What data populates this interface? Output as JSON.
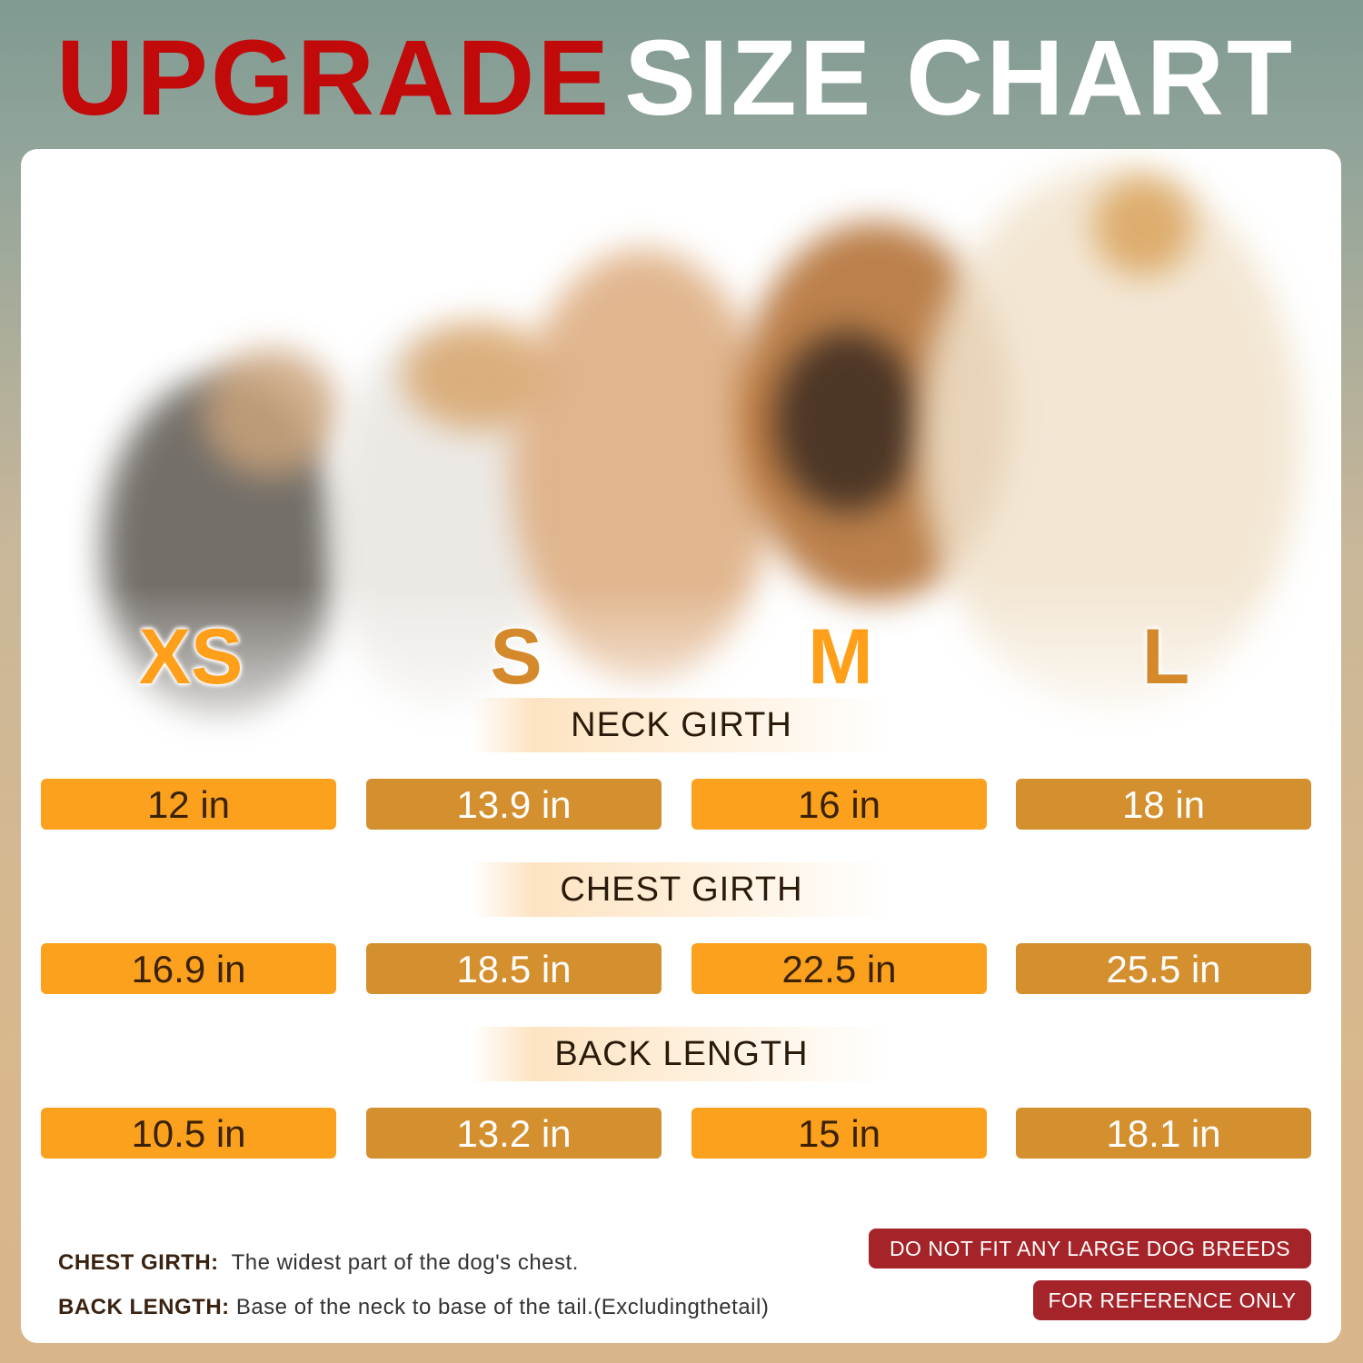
{
  "title": {
    "highlight": "UPGRADE",
    "rest": "SIZE CHART"
  },
  "colors": {
    "title_red": "#c20a0a",
    "orange": "#fba11e",
    "dark_orange": "#d48f2e",
    "badge_red": "#a5242a"
  },
  "sizes": [
    {
      "label": "XS",
      "color": "#ff9f1a"
    },
    {
      "label": "S",
      "color": "#d4892a"
    },
    {
      "label": "M",
      "color": "#ff9f1a"
    },
    {
      "label": "L",
      "color": "#d4892a"
    }
  ],
  "measurements": [
    {
      "name": "NECK GIRTH",
      "values": [
        "12 in",
        "13.9 in",
        "16 in",
        "18 in"
      ]
    },
    {
      "name": "CHEST GIRTH",
      "values": [
        "16.9 in",
        "18.5 in",
        "22.5 in",
        "25.5 in"
      ]
    },
    {
      "name": "BACK LENGTH",
      "values": [
        "10.5 in",
        "13.2 in",
        "15 in",
        "18.1 in"
      ]
    }
  ],
  "notes": [
    {
      "term": "CHEST GIRTH:",
      "text": "The widest part of the dog's chest."
    },
    {
      "term": "BACK LENGTH:",
      "text": "Base of the neck to base of the tail.(Excludingthetail)"
    }
  ],
  "badges": [
    "DO NOT FIT ANY LARGE DOG BREEDS",
    "FOR REFERENCE ONLY"
  ]
}
